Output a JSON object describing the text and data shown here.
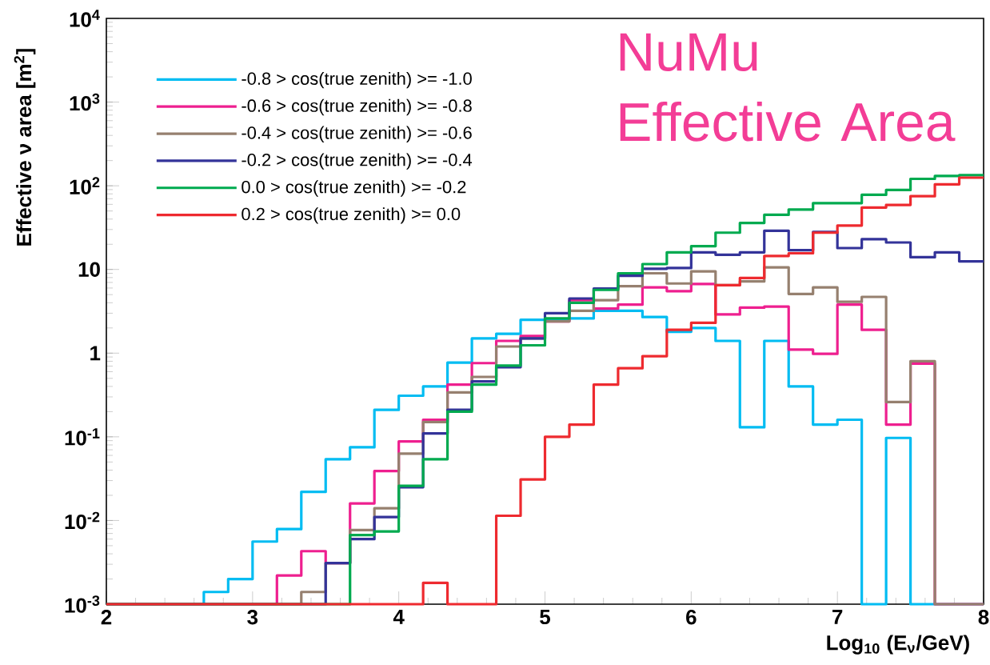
{
  "chart_data": {
    "type": "histogram",
    "title": "NuMu Effective Area",
    "xlabel": "Log$_{10}$ (E$_{ν}$/GeV)",
    "ylabel": "Effective ν area [m$^{2}$]",
    "bins": [
      2,
      2.1667,
      2.3333,
      2.5,
      2.6667,
      2.8333,
      3,
      3.1667,
      3.3333,
      3.5,
      3.6667,
      3.8333,
      4,
      4.1667,
      4.3333,
      4.5,
      4.6667,
      4.8333,
      5,
      5.1667,
      5.3333,
      5.5,
      5.6667,
      5.8333,
      6,
      6.1667,
      6.3333,
      6.5,
      6.6667,
      6.8333,
      7,
      7.1667,
      7.3333,
      7.5,
      7.6667,
      7.8333,
      8
    ],
    "series": [
      {
        "name": "-0.8 > cos(true zenith) >= -1.0",
        "color": "#00bcf2",
        "values": [
          0.001,
          0.001,
          0.001,
          0.001,
          0.0014,
          0.002,
          0.0056,
          0.0079,
          0.022,
          0.054,
          0.075,
          0.21,
          0.31,
          0.4,
          0.77,
          1.5,
          1.7,
          2.5,
          2.5,
          2.6,
          3.2,
          3.2,
          2.7,
          1.8,
          2.0,
          1.4,
          0.13,
          1.4,
          0.4,
          0.14,
          0.16,
          0.001,
          0.097,
          0.001,
          0.001,
          0.001
        ]
      },
      {
        "name": "-0.6 > cos(true zenith) >= -0.8",
        "color": "#ee1f8f",
        "values": [
          0.001,
          0.001,
          0.001,
          0.001,
          0.001,
          0.001,
          0.001,
          0.0022,
          0.0043,
          0.0031,
          0.016,
          0.039,
          0.088,
          0.16,
          0.42,
          0.76,
          1.4,
          1.6,
          2.4,
          4.3,
          3.4,
          3.8,
          6.1,
          5.5,
          6.7,
          2.9,
          3.5,
          3.6,
          1.1,
          0.98,
          3.8,
          1.9,
          0.14,
          0.75,
          0.001,
          0.001
        ]
      },
      {
        "name": "-0.4 > cos(true zenith) >= -0.6",
        "color": "#96806f",
        "values": [
          0.001,
          0.001,
          0.001,
          0.001,
          0.001,
          0.001,
          0.001,
          0.001,
          0.0014,
          0.0031,
          0.0077,
          0.014,
          0.063,
          0.15,
          0.34,
          0.52,
          1.2,
          1.5,
          2.4,
          3.2,
          4.3,
          6.3,
          9.0,
          6.8,
          9.5,
          6.5,
          7.2,
          10.6,
          5.1,
          6.1,
          4.1,
          4.7,
          0.26,
          0.8,
          0.001,
          0.001
        ]
      },
      {
        "name": "-0.2 > cos(true zenith) >= -0.4",
        "color": "#333399",
        "values": [
          0.001,
          0.001,
          0.001,
          0.001,
          0.001,
          0.001,
          0.001,
          0.001,
          0.001,
          0.0031,
          0.006,
          0.011,
          0.025,
          0.11,
          0.21,
          0.46,
          0.68,
          1.5,
          3.0,
          4.5,
          5.9,
          8.4,
          10.2,
          10.4,
          16,
          15,
          16,
          29,
          17,
          28,
          18,
          23,
          21,
          14,
          16,
          12.5
        ]
      },
      {
        "name": "0.0 > cos(true zenith) >= -0.2",
        "color": "#00aa4f",
        "values": [
          0.001,
          0.001,
          0.001,
          0.001,
          0.001,
          0.001,
          0.001,
          0.001,
          0.001,
          0.001,
          0.0067,
          0.0074,
          0.026,
          0.054,
          0.2,
          0.42,
          0.71,
          1.24,
          2.6,
          4.0,
          5.7,
          9.0,
          11.6,
          16,
          19,
          27.5,
          36,
          45,
          52,
          62,
          62,
          78,
          89,
          121,
          131,
          134
        ]
      },
      {
        "name": "0.2 > cos(true zenith) >= 0.0",
        "color": "#ee2a2f",
        "values": [
          0.001,
          0.001,
          0.001,
          0.001,
          0.001,
          0.001,
          0.001,
          0.001,
          0.001,
          0.001,
          0.001,
          0.001,
          0.001,
          0.0018,
          0.001,
          0.001,
          0.0114,
          0.031,
          0.1,
          0.14,
          0.42,
          0.66,
          0.92,
          1.9,
          2.3,
          6.5,
          7.9,
          14.5,
          15.6,
          27.5,
          33.5,
          55,
          59,
          75,
          104,
          125
        ]
      }
    ],
    "xlim": [
      2,
      8
    ],
    "ylim": [
      0.001,
      10000
    ],
    "xticks": [
      2,
      3,
      4,
      5,
      6,
      7,
      8
    ],
    "yticks": [
      {
        "value": 0.001,
        "label": "10$^{-3}$"
      },
      {
        "value": 0.01,
        "label": "10$^{-2}$"
      },
      {
        "value": 0.1,
        "label": "10$^{-1}$"
      },
      1,
      10,
      {
        "value": 100,
        "label": "10$^{2}$"
      },
      {
        "value": 1000,
        "label": "10$^{3}$"
      },
      {
        "value": 10000,
        "label": "10$^{4}$"
      }
    ],
    "log": "y",
    "legend": "top left"
  }
}
